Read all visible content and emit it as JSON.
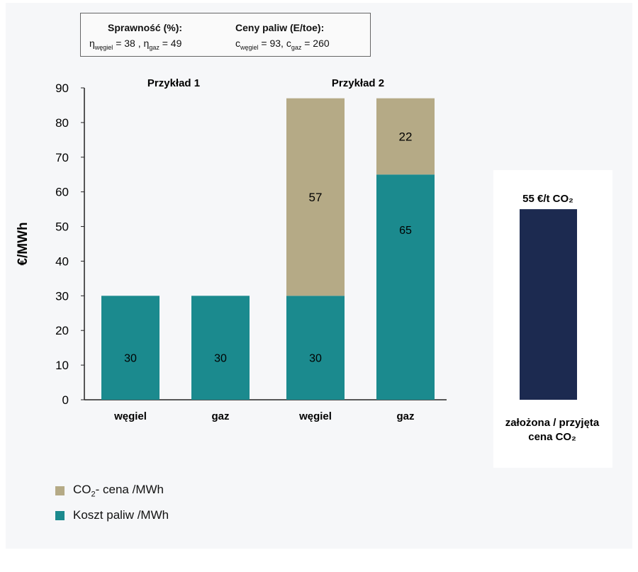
{
  "info_box": {
    "efficiency_title": "Sprawność  (%):",
    "efficiency_coal_label": "η",
    "efficiency_coal_sub": "węgiel",
    "efficiency_coal_value": "= 38 ,",
    "efficiency_gas_label": "η",
    "efficiency_gas_sub": "gaz",
    "efficiency_gas_value": "= 49",
    "prices_title": "Ceny paliw (E/toe):",
    "price_coal_label": "c",
    "price_coal_sub": "węgiel",
    "price_coal_value": "= 93,",
    "price_gas_label": "c",
    "price_gas_sub": "gaz",
    "price_gas_value": "= 260"
  },
  "legend": {
    "co2_prefix": "CO",
    "co2_sub": "2",
    "co2_suffix": "-   cena /MWh",
    "fuel_label": "Koszt paliw   /MWh"
  },
  "colors": {
    "fuel": "#1b8a8e",
    "co2": "#b5aa86",
    "carbon_price_bar": "#1c2a50"
  },
  "side": {
    "price_label": "55 €/t CO₂",
    "price_value": 55,
    "caption_line1": "założona / przyjęta",
    "caption_line2": "cena CO₂"
  },
  "chart_data": {
    "type": "bar",
    "stacked": true,
    "ylabel": "€/MWh",
    "ylim": [
      0,
      90
    ],
    "yticks": [
      0,
      10,
      20,
      30,
      40,
      50,
      60,
      70,
      80,
      90
    ],
    "groups": [
      "Przykład 1",
      "Przykład 2"
    ],
    "categories": [
      "węgiel",
      "gaz",
      "węgiel",
      "gaz"
    ],
    "series": [
      {
        "name": "Koszt paliw /MWh",
        "values": [
          30,
          30,
          30,
          65
        ]
      },
      {
        "name": "CO2- cena /MWh",
        "values": [
          0,
          0,
          57,
          22
        ]
      }
    ],
    "data_labels": [
      [
        "30",
        "30",
        "30",
        "65"
      ],
      [
        "",
        "",
        "57",
        "22"
      ]
    ],
    "grid": false
  }
}
